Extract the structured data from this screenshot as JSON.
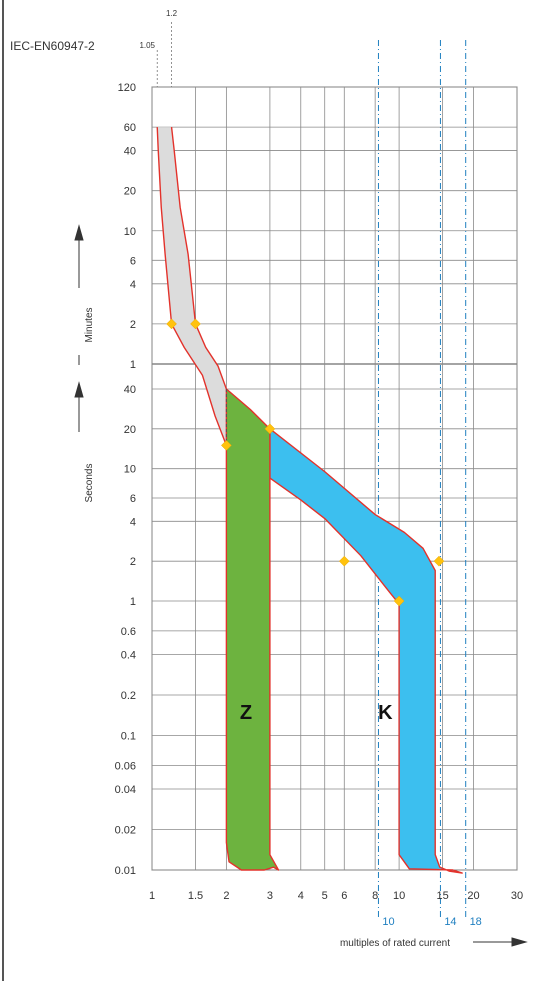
{
  "chart_data": {
    "type": "area",
    "title": "IEC-EN60947-2",
    "x_scale": "log",
    "y_scale": "log",
    "xlim": [
      1,
      30
    ],
    "ylim_seconds": [
      0.01,
      7200
    ],
    "x_ticks": [
      {
        "v": 1,
        "label": "1"
      },
      {
        "v": 1.5,
        "label": "1.5"
      },
      {
        "v": 2,
        "label": "2"
      },
      {
        "v": 3,
        "label": "3"
      },
      {
        "v": 4,
        "label": "4"
      },
      {
        "v": 5,
        "label": "5"
      },
      {
        "v": 6,
        "label": "6"
      },
      {
        "v": 8,
        "label": "8"
      },
      {
        "v": 10,
        "label": "10"
      },
      {
        "v": 15,
        "label": "15"
      },
      {
        "v": 20,
        "label": "20"
      },
      {
        "v": 30,
        "label": "30"
      }
    ],
    "y_ticks_minutes": [
      {
        "v": 7200,
        "label": "120"
      },
      {
        "v": 3600,
        "label": "60"
      },
      {
        "v": 2400,
        "label": "40"
      },
      {
        "v": 1200,
        "label": "20"
      },
      {
        "v": 600,
        "label": "10"
      },
      {
        "v": 360,
        "label": "6"
      },
      {
        "v": 240,
        "label": "4"
      },
      {
        "v": 120,
        "label": "2"
      },
      {
        "v": 60,
        "label": "1"
      }
    ],
    "y_ticks_seconds": [
      {
        "v": 40,
        "label": "40"
      },
      {
        "v": 20,
        "label": "20"
      },
      {
        "v": 10,
        "label": "10"
      },
      {
        "v": 6,
        "label": "6"
      },
      {
        "v": 4,
        "label": "4"
      },
      {
        "v": 2,
        "label": "2"
      },
      {
        "v": 1,
        "label": "1"
      },
      {
        "v": 0.6,
        "label": "0.6"
      },
      {
        "v": 0.4,
        "label": "0.4"
      },
      {
        "v": 0.2,
        "label": "0.2"
      },
      {
        "v": 0.1,
        "label": "0.1"
      },
      {
        "v": 0.06,
        "label": "0.06"
      },
      {
        "v": 0.04,
        "label": "0.04"
      },
      {
        "v": 0.02,
        "label": "0.02"
      },
      {
        "v": 0.01,
        "label": "0.01"
      }
    ],
    "minutes_label": "Minutes",
    "seconds_label": "Seconds",
    "xlabel": "multiples of rated current",
    "top_markers": [
      {
        "v": 1.05,
        "label": "1.05"
      },
      {
        "v": 1.2,
        "label": "1.2"
      }
    ],
    "bottom_markers": [
      {
        "v": 10,
        "label": "10"
      },
      {
        "v": 14,
        "label": "14"
      },
      {
        "v": 18,
        "label": "18"
      }
    ],
    "series": [
      {
        "name": "Z",
        "label_position": {
          "x": 2.4,
          "y": 0.15
        },
        "color": "#6db33f",
        "polygon": [
          [
            2,
            40
          ],
          [
            2,
            0.016
          ],
          [
            2.05,
            0.0115
          ],
          [
            2.3,
            0.01
          ],
          [
            2.85,
            0.01
          ],
          [
            3.1,
            0.0105
          ],
          [
            3.25,
            0.01
          ],
          [
            3.0,
            0.013
          ],
          [
            3.0,
            20
          ],
          [
            2.5,
            28
          ]
        ]
      },
      {
        "name": "K",
        "label_position": {
          "x": 8.8,
          "y": 0.15
        },
        "color": "#3cbfef",
        "polygon": [
          [
            3,
            20
          ],
          [
            5,
            9.5
          ],
          [
            8,
            4.5
          ],
          [
            10.5,
            3.3
          ],
          [
            12.5,
            2.5
          ],
          [
            14,
            1.7
          ],
          [
            14,
            0.013
          ],
          [
            14.6,
            0.0105
          ],
          [
            16,
            0.0098
          ],
          [
            18,
            0.0095
          ],
          [
            16.5,
            0.01
          ],
          [
            11,
            0.0102
          ],
          [
            10,
            0.013
          ],
          [
            10,
            0.95
          ],
          [
            9.2,
            1.15
          ],
          [
            7,
            2.2
          ],
          [
            5,
            4.2
          ],
          [
            4,
            5.8
          ],
          [
            3,
            8.5
          ],
          [
            3,
            20
          ]
        ]
      },
      {
        "name": "",
        "color": "#dcdcdc",
        "upper": [
          [
            1.2,
            3600
          ],
          [
            1.23,
            2400
          ],
          [
            1.3,
            900
          ],
          [
            1.4,
            400
          ],
          [
            1.5,
            120
          ],
          [
            1.65,
            80
          ],
          [
            1.85,
            58
          ],
          [
            2,
            40
          ]
        ],
        "lower": [
          [
            1.05,
            3600
          ],
          [
            1.06,
            2400
          ],
          [
            1.09,
            900
          ],
          [
            1.13,
            400
          ],
          [
            1.2,
            120
          ],
          [
            1.35,
            80
          ],
          [
            1.6,
            50
          ],
          [
            1.8,
            25
          ],
          [
            2,
            15
          ]
        ]
      }
    ],
    "points": [
      [
        1.2,
        120
      ],
      [
        1.5,
        120
      ],
      [
        2,
        15
      ],
      [
        3,
        20
      ],
      [
        6,
        2
      ],
      [
        10,
        1
      ],
      [
        14.5,
        2
      ]
    ]
  }
}
